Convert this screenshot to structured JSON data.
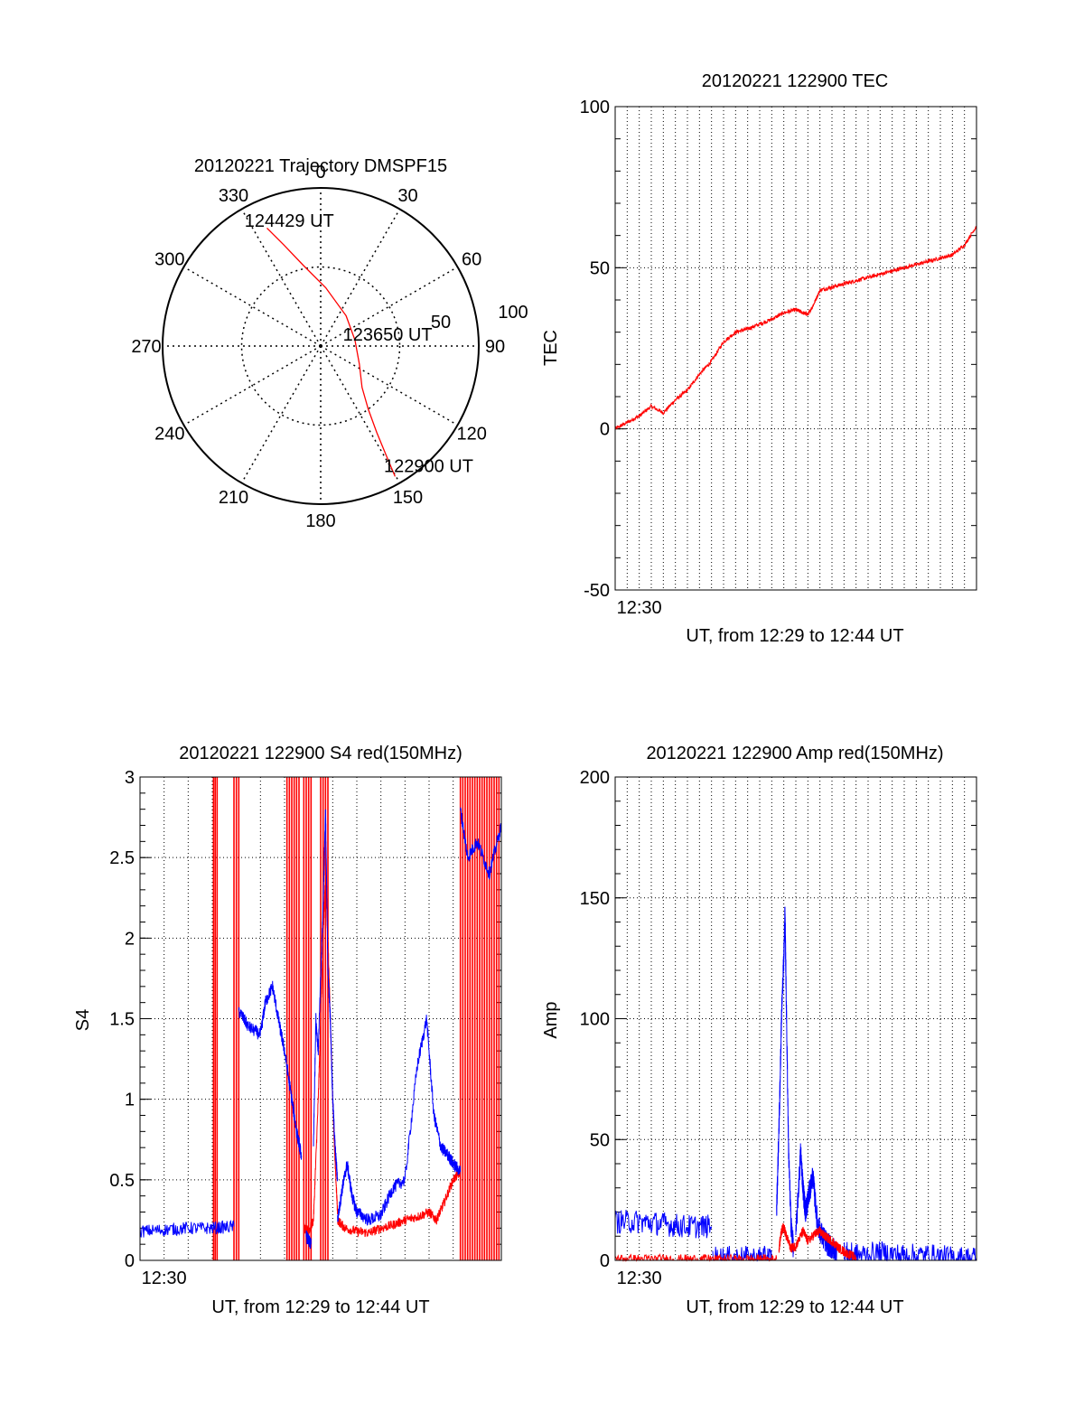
{
  "chart_data": [
    {
      "type": "polar",
      "title": "20120221 Trajectory DMSPF15",
      "angle_labels": [
        "0",
        "30",
        "60",
        "90",
        "120",
        "150",
        "180",
        "210",
        "240",
        "270",
        "300",
        "330"
      ],
      "radius_labels": [
        "50",
        "100"
      ],
      "rlim": [
        0,
        100
      ],
      "zenith_at_center": true,
      "grid": true,
      "series": [
        {
          "color": "#ff0000",
          "points": [
            {
              "az": 150.3,
              "r": 95
            },
            {
              "az": 149,
              "r": 80
            },
            {
              "az": 147,
              "r": 65
            },
            {
              "az": 143,
              "r": 50
            },
            {
              "az": 135,
              "r": 37
            },
            {
              "az": 115,
              "r": 27
            },
            {
              "az": 80,
              "r": 22
            },
            {
              "az": 40,
              "r": 25
            },
            {
              "az": 5,
              "r": 37
            },
            {
              "az": -12,
              "r": 52
            },
            {
              "az": -20,
              "r": 68
            },
            {
              "az": -24.5,
              "r": 82
            }
          ]
        }
      ],
      "annotations": [
        {
          "text": "124429 UT",
          "az": -14,
          "r": 82
        },
        {
          "text": "123650 UT",
          "az": 80,
          "r": 43
        },
        {
          "text": "122900 UT",
          "az": 138,
          "r": 102
        }
      ]
    },
    {
      "type": "line",
      "title": "20120221 122900 TEC",
      "ylabel": "TEC",
      "xlabel": "UT, from 12:29 to 12:44 UT",
      "xlim": [
        0,
        15
      ],
      "x_tick_labels": [
        {
          "x": 1,
          "label": "12:30"
        }
      ],
      "x_gridlines": [
        0.5,
        1,
        1.5,
        2,
        2.5,
        3,
        3.5,
        4,
        4.5,
        5,
        5.5,
        6,
        6.5,
        7,
        7.5,
        8,
        8.5,
        9,
        9.5,
        10,
        10.5,
        11,
        11.5,
        12,
        12.5,
        13,
        13.5,
        14,
        14.5
      ],
      "ylim": [
        -50,
        100
      ],
      "y_ticks": [
        -50,
        0,
        50,
        100
      ],
      "y_minor": 10,
      "grid": true,
      "series": [
        {
          "color": "#ff0000",
          "noise": 0.6,
          "x": [
            0,
            0.5,
            1,
            1.5,
            2,
            2.5,
            3,
            3.5,
            4,
            4.5,
            5,
            5.5,
            6,
            6.5,
            7,
            7.5,
            7.8,
            8,
            8.2,
            8.5,
            9,
            9.5,
            10,
            10.5,
            11,
            11.5,
            12,
            12.5,
            13,
            13.5,
            14,
            14.5,
            15
          ],
          "y": [
            0,
            2,
            4,
            7,
            5,
            9,
            12,
            17,
            21,
            27,
            30,
            31,
            32.5,
            34,
            36,
            37,
            36,
            35.5,
            38,
            43,
            44,
            45,
            46,
            47,
            48,
            49,
            50,
            51,
            52,
            53,
            54,
            57,
            63
          ]
        }
      ]
    },
    {
      "type": "line",
      "title": "20120221 122900 S4 red(150MHz)",
      "ylabel": "S4",
      "xlabel": "UT, from 12:29 to 12:44 UT",
      "xlim": [
        0,
        15
      ],
      "x_tick_labels": [
        {
          "x": 1,
          "label": "12:30"
        }
      ],
      "x_gridlines": [
        1,
        2,
        3,
        4,
        5,
        6,
        7,
        8,
        9,
        10,
        11,
        12,
        13,
        14
      ],
      "ylim": [
        0,
        3
      ],
      "y_ticks": [
        0,
        0.5,
        1,
        1.5,
        2,
        2.5,
        3
      ],
      "y_tick_labels": [
        "0",
        "0.5",
        "1",
        "1.5",
        "2",
        "2.5",
        "3"
      ],
      "y_minor": 0.1,
      "grid": true,
      "red_spikes": [
        3.05,
        3.12,
        3.2,
        3.9,
        4.0,
        4.1,
        6.1,
        6.2,
        6.3,
        6.4,
        6.5,
        6.6,
        6.8,
        6.9,
        7.0,
        7.1,
        7.5,
        7.6,
        7.7,
        7.8,
        13.3,
        13.4,
        13.5,
        13.6,
        13.7,
        13.8,
        13.9,
        14.0,
        14.1,
        14.2,
        14.3,
        14.4,
        14.5,
        14.6,
        14.7,
        14.8,
        14.9
      ],
      "series": [
        {
          "name": "",
          "color": "#ff0000",
          "noise": 0.03,
          "segments": [
            {
              "x": [
                6.8,
                7.0,
                7.2,
                7.4,
                7.5,
                7.6,
                7.7,
                7.8,
                7.9,
                8.0,
                8.1,
                8.2
              ],
              "y": [
                0.2,
                0.18,
                0.25,
                1.0,
                1.5,
                2.0,
                2.4,
                2.0,
                1.5,
                1.0,
                0.6,
                0.3
              ]
            },
            {
              "x": [
                8.2,
                8.5,
                9,
                9.5,
                10,
                10.5,
                11,
                11.5,
                12,
                12.3,
                12.6,
                13.0,
                13.3
              ],
              "y": [
                0.25,
                0.2,
                0.18,
                0.17,
                0.2,
                0.22,
                0.25,
                0.27,
                0.3,
                0.25,
                0.35,
                0.5,
                0.55
              ]
            }
          ]
        },
        {
          "name": "",
          "color": "#0000ff",
          "noise": 0.04,
          "segments": [
            {
              "x": [
                0,
                1,
                2,
                3,
                3.9
              ],
              "y": [
                0.18,
                0.19,
                0.2,
                0.2,
                0.21
              ]
            },
            {
              "x": [
                4.1,
                4.5,
                5,
                5.2,
                5.5,
                5.8,
                6.0,
                6.3,
                6.5,
                6.7
              ],
              "y": [
                1.55,
                1.45,
                1.4,
                1.6,
                1.7,
                1.45,
                1.3,
                1.0,
                0.8,
                0.65
              ]
            },
            {
              "x": [
                6.9,
                7.0,
                7.1
              ],
              "y": [
                0.15,
                0.12,
                0.1
              ]
            },
            {
              "x": [
                7.2,
                7.3,
                7.4,
                7.6,
                7.7,
                7.8,
                7.9,
                8.0,
                8.1,
                8.2
              ],
              "y": [
                0.7,
                1.5,
                1.3,
                2.2,
                2.8,
                1.8,
                1.5,
                1.0,
                0.7,
                0.5
              ]
            },
            {
              "x": [
                8.2,
                8.4,
                8.6,
                8.8,
                9.0,
                9.5,
                10,
                10.5,
                11,
                11.5,
                11.9,
                12.2,
                12.5,
                12.8,
                13.0,
                13.3
              ],
              "y": [
                0.25,
                0.45,
                0.6,
                0.4,
                0.3,
                0.25,
                0.28,
                0.45,
                0.5,
                1.2,
                1.5,
                0.9,
                0.7,
                0.65,
                0.6,
                0.55
              ]
            },
            {
              "x": [
                13.3,
                13.6,
                14,
                14.5,
                15
              ],
              "y": [
                2.8,
                2.5,
                2.6,
                2.4,
                2.7
              ]
            }
          ]
        }
      ]
    },
    {
      "type": "line",
      "title": "20120221 122900 Amp red(150MHz)",
      "ylabel": "Amp",
      "xlabel": "UT, from 12:29 to 12:44 UT",
      "xlim": [
        0,
        15
      ],
      "x_tick_labels": [
        {
          "x": 1,
          "label": "12:30"
        }
      ],
      "x_gridlines": [
        0.5,
        1,
        1.5,
        2,
        2.5,
        3,
        3.5,
        4,
        4.5,
        5,
        5.5,
        6,
        6.5,
        7,
        7.5,
        8,
        8.5,
        9,
        9.5,
        10,
        10.5,
        11,
        11.5,
        12,
        12.5,
        13,
        13.5,
        14,
        14.5
      ],
      "ylim": [
        0,
        200
      ],
      "y_ticks": [
        0,
        50,
        100,
        150,
        200
      ],
      "y_minor": 10,
      "grid": true,
      "series": [
        {
          "name": "",
          "color": "#0000ff",
          "noise": 5,
          "segments": [
            {
              "x": [
                0,
                1,
                2,
                3,
                4
              ],
              "y": [
                16,
                16,
                15,
                14,
                14
              ]
            },
            {
              "x": [
                4.05,
                5,
                6,
                6.5
              ],
              "y": [
                1,
                1,
                1,
                1
              ]
            },
            {
              "x": [
                6.7,
                6.8,
                6.85,
                6.9,
                7.0,
                7.05,
                7.1,
                7.2,
                7.3,
                7.4
              ],
              "y": [
                20,
                55,
                75,
                100,
                125,
                145,
                110,
                45,
                15,
                5
              ]
            },
            {
              "x": [
                7.5,
                7.7,
                7.8,
                7.9,
                8.0,
                8.2,
                8.4,
                8.6,
                8.8,
                9.0,
                9.2
              ],
              "y": [
                10,
                45,
                30,
                20,
                25,
                35,
                15,
                10,
                7,
                5,
                4
              ]
            },
            {
              "x": [
                9.5,
                10,
                11,
                12,
                13,
                14,
                15
              ],
              "y": [
                3,
                2,
                3,
                2,
                2,
                1,
                1
              ]
            }
          ]
        },
        {
          "name": "",
          "color": "#ff0000",
          "noise": 2,
          "segments": [
            {
              "x": [
                0,
                1,
                2,
                3,
                4,
                5,
                6,
                6.7
              ],
              "y": [
                0.5,
                0.5,
                0.5,
                0.5,
                0.5,
                0.5,
                0.5,
                0.5
              ]
            },
            {
              "x": [
                6.8,
                6.9,
                7.0,
                7.1,
                7.3,
                7.5,
                7.8,
                8.0,
                8.3,
                8.5,
                8.7,
                9.0,
                9.3,
                9.6,
                10
              ],
              "y": [
                5,
                12,
                14,
                10,
                5,
                6,
                12,
                8,
                11,
                12,
                10,
                8,
                5,
                3,
                1
              ]
            }
          ]
        }
      ]
    }
  ]
}
